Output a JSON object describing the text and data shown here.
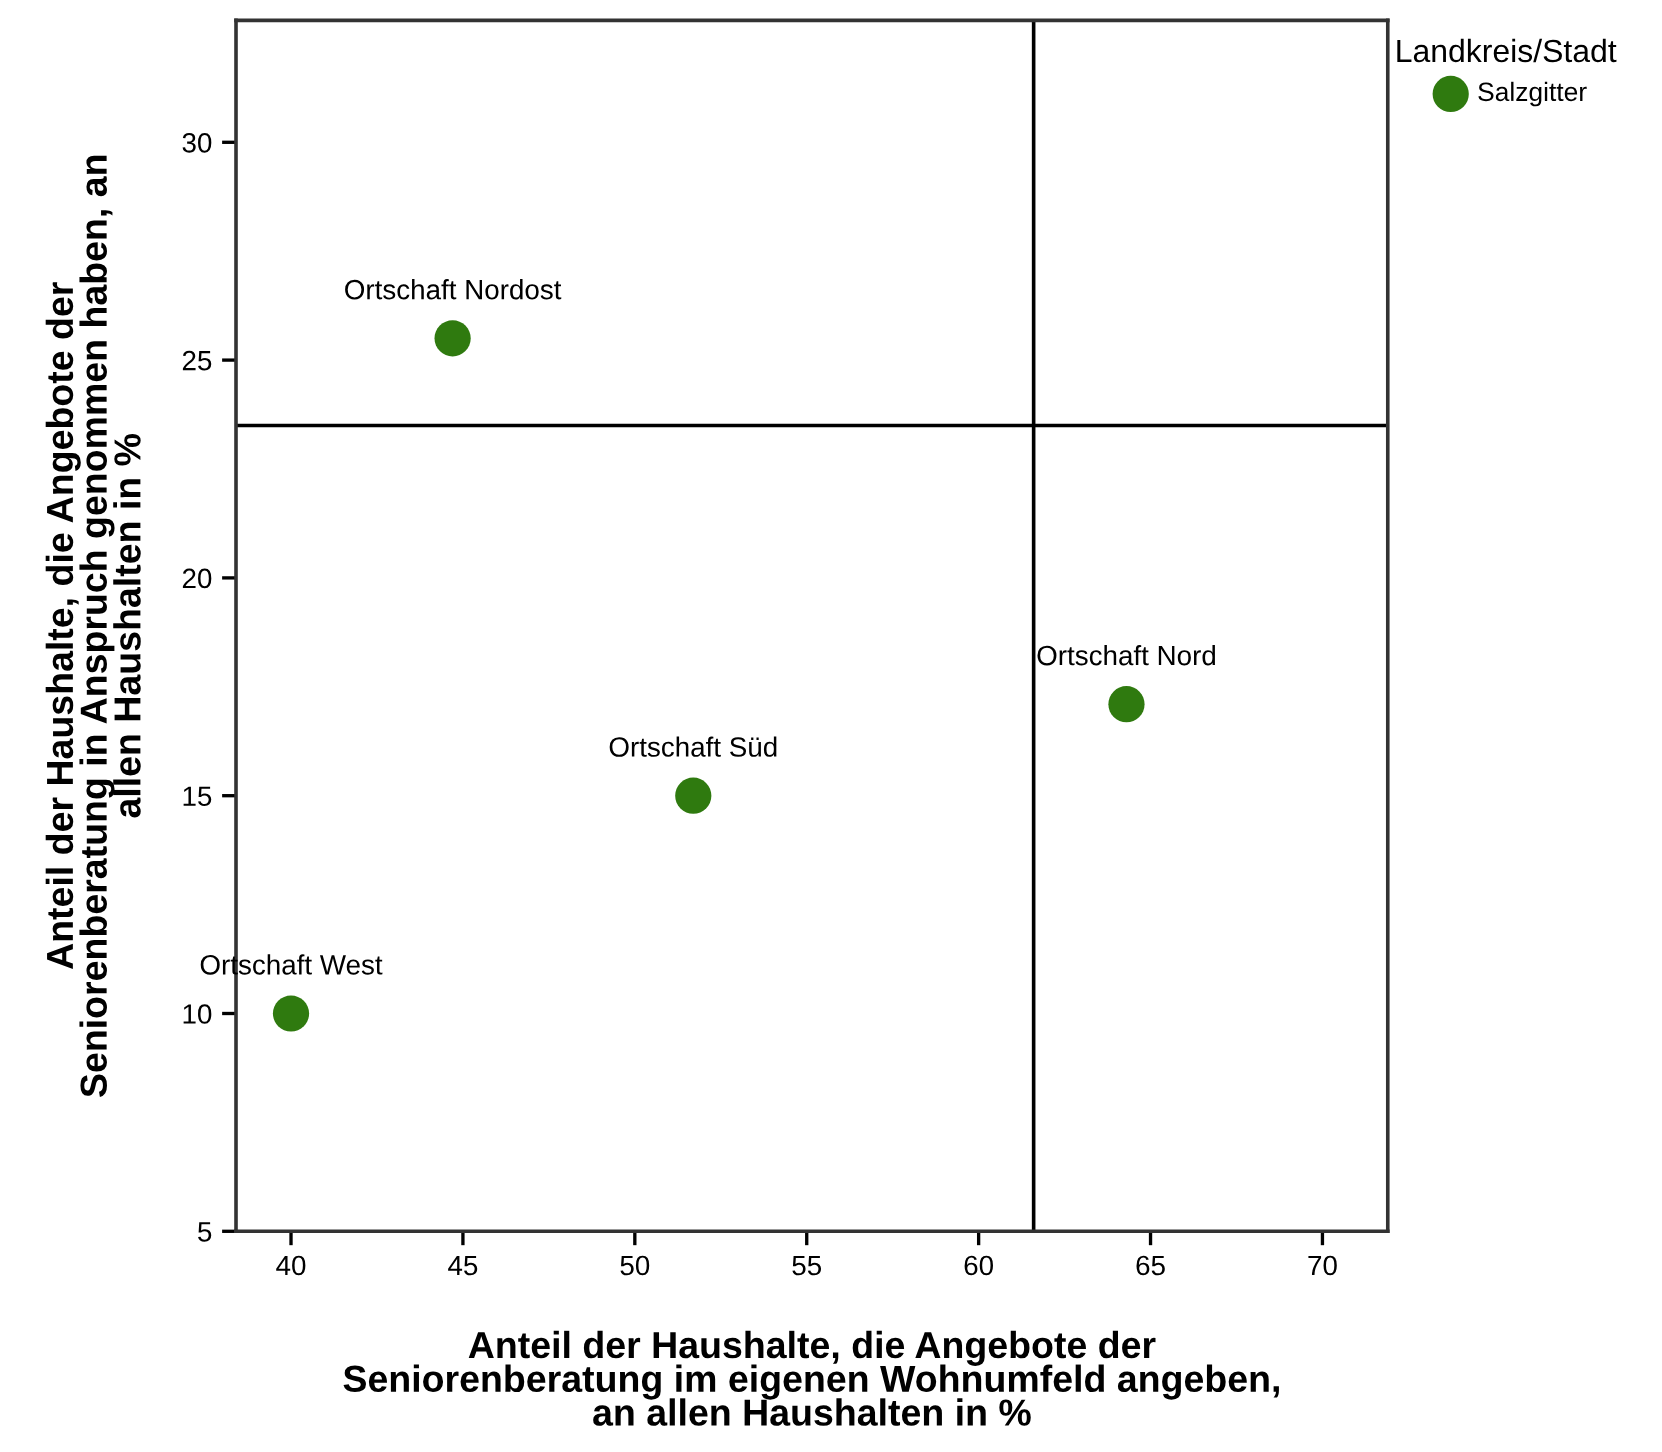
{
  "chart_data": {
    "type": "scatter",
    "xlabel": "Anteil der Haushalte, die Angebote der\nSeniorenberatung im eigenen Wohnumfeld angeben,\nan allen Haushalten in %",
    "ylabel": "Anteil der Haushalte, die Angebote der\nSeniorenberatung in Anspruch genommen haben, an\nallen Haushalten in %",
    "legend_title": "Landkreis/Stadt",
    "series": [
      {
        "name": "Salzgitter",
        "color": "#2f7a0f",
        "x": [
          40.0,
          44.7,
          51.7,
          64.3
        ],
        "values": [
          10.0,
          25.5,
          15.0,
          17.1
        ]
      }
    ],
    "annotations": [
      {
        "text": "Ortschaft West",
        "x": 40.0,
        "y": 10.0
      },
      {
        "text": "Ortschaft Nordost",
        "x": 44.7,
        "y": 25.5
      },
      {
        "text": "Ortschaft Süd",
        "x": 51.7,
        "y": 15.0
      },
      {
        "text": "Ortschaft Nord",
        "x": 64.3,
        "y": 17.1
      }
    ],
    "ref_lines": [
      {
        "axis": "x",
        "value": 61.6,
        "color": "#000000"
      },
      {
        "axis": "y",
        "value": 23.5,
        "color": "#000000"
      }
    ],
    "xlim": [
      38.4,
      71.9
    ],
    "xticks": [
      40,
      45,
      50,
      55,
      60,
      65,
      70
    ],
    "ylim": [
      5,
      32.8
    ],
    "yticks": [
      5,
      10,
      15,
      20,
      25,
      30
    ],
    "marker": "circle",
    "grid": false,
    "legend": "top right"
  }
}
